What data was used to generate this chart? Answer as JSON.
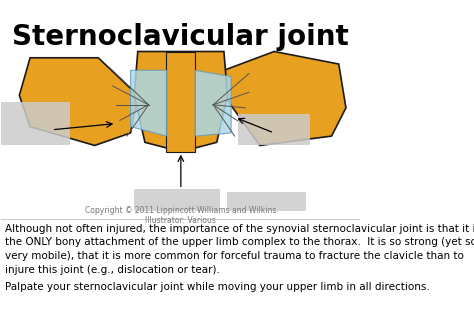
{
  "title": "Sternoclavicular joint",
  "title_fontsize": 20,
  "title_fontweight": "bold",
  "bg_color": "#ffffff",
  "text_color": "#000000",
  "body_text_1": "Although not often injured, the importance of the synovial sternoclavicular joint is that it is\nthe ONLY bony attachment of the upper limb complex to the thorax.  It is so strong (yet so\nvery mobile), that it is more common for forceful trauma to fracture the clavicle than to\ninjure this joint (e.g., dislocation or tear).",
  "body_text_2": "Palpate your sternoclavicular joint while moving your upper limb in all directions.",
  "copyright_text": "Copyright © 2011 Lippincott Williams and Wilkins\nIllustrator: Various",
  "bone_color": "#E8A020",
  "bone_outline": "#1a1a1a",
  "cartilage_color": "#ADD8E6",
  "blurred_box_color": "#cccccc",
  "body_fontsize": 7.5,
  "copyright_fontsize": 5.5
}
